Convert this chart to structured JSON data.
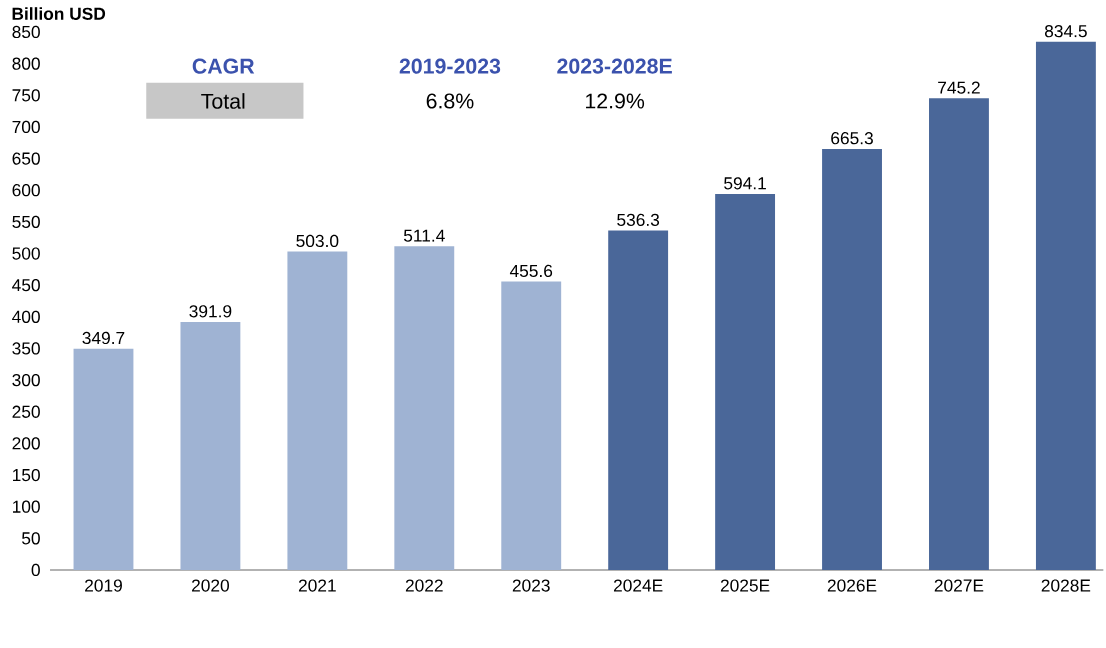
{
  "chart_data": {
    "type": "bar",
    "ylabel": "Billion USD",
    "categories": [
      "2019",
      "2020",
      "2021",
      "2022",
      "2023",
      "2024E",
      "2025E",
      "2026E",
      "2027E",
      "2028E"
    ],
    "values": [
      349.7,
      391.9,
      503.0,
      511.4,
      455.6,
      536.3,
      594.1,
      665.3,
      745.2,
      834.5
    ],
    "colors": [
      "#9fb3d3",
      "#9fb3d3",
      "#9fb3d3",
      "#9fb3d3",
      "#9fb3d3",
      "#4a6799",
      "#4a6799",
      "#4a6799",
      "#4a6799",
      "#4a6799"
    ],
    "value_labels": [
      "349.7",
      "391.9",
      "503.0",
      "511.4",
      "455.6",
      "536.3",
      "594.1",
      "665.3",
      "745.2",
      "834.5"
    ],
    "ylim": [
      0,
      850
    ],
    "yticks": [
      0,
      50,
      100,
      150,
      200,
      250,
      300,
      350,
      400,
      450,
      500,
      550,
      600,
      650,
      700,
      750,
      800,
      850
    ],
    "annotations": [
      "CAGR",
      "2019-2023",
      "2023-2028E",
      "Total",
      "6.8%",
      "12.9%"
    ]
  }
}
